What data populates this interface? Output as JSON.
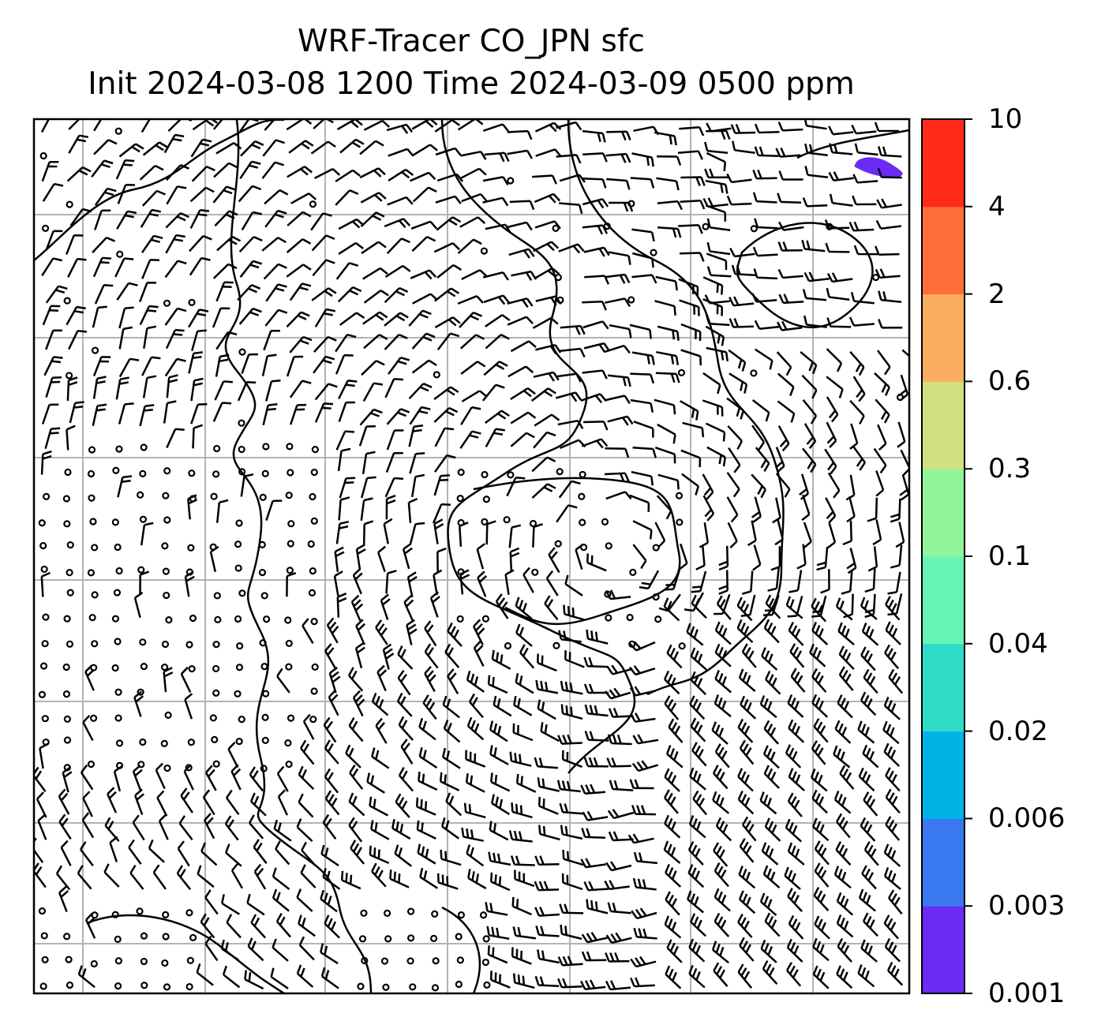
{
  "title": {
    "line1": "WRF-Tracer CO_JPN sfc",
    "line2": "Init 2024-03-08 1200 Time 2024-03-09 0500 ppm"
  },
  "colorbar": {
    "levels": [
      "0.001",
      "0.003",
      "0.006",
      "0.02",
      "0.04",
      "0.1",
      "0.3",
      "0.6",
      "2",
      "4",
      "10"
    ],
    "colors": [
      "#6a2cf5",
      "#3a78f0",
      "#00b3e6",
      "#2edcc8",
      "#66f5b4",
      "#92f59a",
      "#d2e081",
      "#fcae60",
      "#ff6e39",
      "#ff2b18"
    ]
  },
  "map": {
    "gridlines": "on",
    "tracer_region_color": "#6a2cf5",
    "symbols": "wind barbs, calm circles",
    "features": "coastlines, gridlines"
  }
}
